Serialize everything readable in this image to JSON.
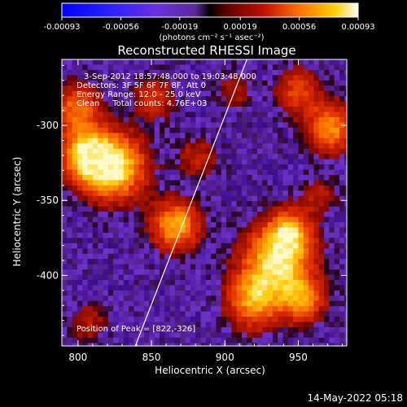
{
  "colorbar": {
    "ticks": [
      "-0.00093",
      "-0.00056",
      "-0.00019",
      "0.00019",
      "0.00056",
      "0.00093"
    ],
    "unit": "(photons cm⁻² s⁻¹ asec⁻²)",
    "min": -0.00093,
    "max": 0.00093
  },
  "chart_data": {
    "type": "heatmap",
    "title": "Reconstructed RHESSI Image",
    "xlabel": "Heliocentric X (arcsec)",
    "ylabel": "Heliocentric Y (arcsec)",
    "xticks": [
      "800",
      "850",
      "900",
      "950"
    ],
    "yticks": [
      "-300",
      "-350",
      "-400"
    ],
    "xlim": [
      789,
      983
    ],
    "ylim": [
      -447,
      -256
    ],
    "annotations": [
      "3-Sep-2012 18:57:48.000 to 19:03:48.000",
      "Detectors: 3F 5F 6F 7F 8F, Att 0",
      "Energy Range: 12.0 - 25.0 keV",
      "Clean     Total counts: 4.76E+03"
    ],
    "peak_label": "Position of Peak = [822,-326]",
    "peak": [
      822,
      -326
    ],
    "limb": [
      [
        839,
        -447
      ],
      [
        915,
        -256
      ]
    ],
    "sources": [
      {
        "x": 822,
        "y": -326,
        "intensity": 1.0,
        "size": 16
      },
      {
        "x": 803,
        "y": -318,
        "intensity": 0.75,
        "size": 12
      },
      {
        "x": 797,
        "y": -287,
        "intensity": 0.6,
        "size": 12
      },
      {
        "x": 865,
        "y": -365,
        "intensity": 0.8,
        "size": 12
      },
      {
        "x": 850,
        "y": -280,
        "intensity": 0.45,
        "size": 10
      },
      {
        "x": 880,
        "y": -320,
        "intensity": 0.35,
        "size": 10
      },
      {
        "x": 935,
        "y": -387,
        "intensity": 0.9,
        "size": 17
      },
      {
        "x": 918,
        "y": -415,
        "intensity": 0.7,
        "size": 14
      },
      {
        "x": 952,
        "y": -415,
        "intensity": 0.6,
        "size": 11
      },
      {
        "x": 943,
        "y": -368,
        "intensity": 0.55,
        "size": 10
      },
      {
        "x": 970,
        "y": -300,
        "intensity": 0.7,
        "size": 12
      },
      {
        "x": 948,
        "y": -275,
        "intensity": 0.5,
        "size": 11
      },
      {
        "x": 962,
        "y": -345,
        "intensity": 0.3,
        "size": 9
      },
      {
        "x": 805,
        "y": -430,
        "intensity": 0.3,
        "size": 10
      },
      {
        "x": 905,
        "y": -275,
        "intensity": 0.3,
        "size": 9
      }
    ]
  },
  "footer": {
    "timestamp": "14-May-2022 05:18"
  }
}
